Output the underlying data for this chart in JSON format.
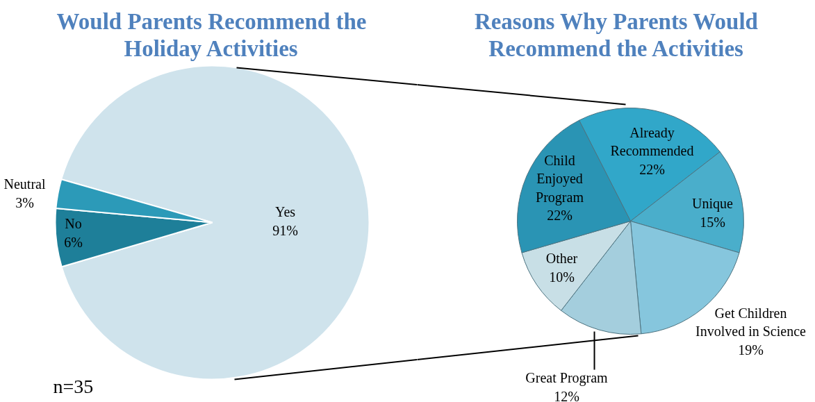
{
  "chart_data": [
    {
      "type": "pie",
      "title": "Would Parents Recommend the Holiday Activities",
      "categories": [
        "Yes",
        "No",
        "Neutral"
      ],
      "values": [
        91,
        6,
        3
      ],
      "value_labels": [
        "91%",
        "6%",
        "3%"
      ],
      "colors": [
        "#cfe3ec",
        "#1e7f99",
        "#2c9ab8"
      ],
      "annotations": [
        "n=35"
      ]
    },
    {
      "type": "pie",
      "title": "Reasons Why Parents Would Recommend the Activities",
      "categories": [
        "Already Recommended",
        "Unique",
        "Get Children Involved in Science",
        "Great Program",
        "Other",
        "Child Enjoyed Program"
      ],
      "values": [
        22,
        15,
        19,
        12,
        10,
        22
      ],
      "value_labels": [
        "22%",
        "15%",
        "19%",
        "12%",
        "10%",
        "22%"
      ],
      "colors": [
        "#31a7c9",
        "#4aaecb",
        "#86c6dd",
        "#a4cedd",
        "#c8dfe6",
        "#2a94b4"
      ]
    }
  ]
}
